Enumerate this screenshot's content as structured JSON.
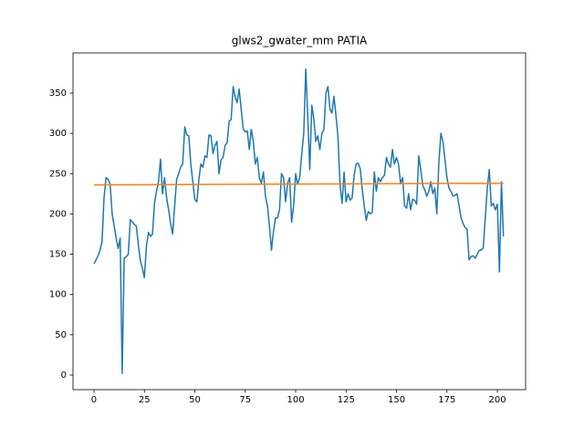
{
  "chart_data": {
    "type": "line",
    "title": "glws2_gwater_mm PATIA",
    "xlim": [
      -10.4,
      214
    ],
    "ylim": [
      -18.1,
      399.8
    ],
    "xticks": [
      0,
      25,
      50,
      75,
      100,
      125,
      150,
      175,
      200
    ],
    "yticks": [
      0,
      50,
      100,
      150,
      200,
      250,
      300,
      350
    ],
    "series": [
      {
        "color": "#1f77b4",
        "x": [
          0,
          1,
          2,
          3,
          4,
          5,
          6,
          7,
          8,
          9,
          10,
          11,
          12,
          13,
          14,
          15,
          16,
          17,
          18,
          19,
          20,
          21,
          22,
          23,
          24,
          25,
          26,
          27,
          28,
          29,
          30,
          31,
          32,
          33,
          34,
          35,
          36,
          37,
          38,
          39,
          40,
          41,
          42,
          43,
          44,
          45,
          46,
          47,
          48,
          49,
          50,
          51,
          52,
          53,
          54,
          55,
          56,
          57,
          58,
          59,
          60,
          61,
          62,
          63,
          64,
          65,
          66,
          67,
          68,
          69,
          70,
          71,
          72,
          73,
          74,
          75,
          76,
          77,
          78,
          79,
          80,
          81,
          82,
          83,
          84,
          85,
          86,
          87,
          88,
          89,
          90,
          91,
          92,
          93,
          94,
          95,
          96,
          97,
          98,
          99,
          100,
          101,
          102,
          103,
          104,
          105,
          106,
          107,
          108,
          109,
          110,
          111,
          112,
          113,
          114,
          115,
          116,
          117,
          118,
          119,
          120,
          121,
          122,
          123,
          124,
          125,
          126,
          127,
          128,
          129,
          130,
          131,
          132,
          133,
          134,
          135,
          136,
          137,
          138,
          139,
          140,
          141,
          142,
          143,
          144,
          145,
          146,
          147,
          148,
          149,
          150,
          151,
          152,
          153,
          154,
          155,
          156,
          157,
          158,
          159,
          160,
          161,
          162,
          163,
          164,
          165,
          166,
          167,
          168,
          169,
          170,
          171,
          172,
          173,
          174,
          175,
          176,
          177,
          178,
          179,
          180,
          181,
          182,
          183,
          184,
          185,
          186,
          187,
          188,
          189,
          190,
          191,
          192,
          193,
          194,
          195,
          196,
          197,
          198,
          199,
          200,
          201,
          202,
          203
        ],
        "values": [
          138,
          143,
          148,
          155,
          165,
          220,
          245,
          243,
          237,
          200,
          185,
          170,
          157,
          170,
          2,
          145,
          147,
          150,
          193,
          190,
          187,
          185,
          162,
          142,
          133,
          121,
          160,
          177,
          172,
          175,
          213,
          228,
          240,
          268,
          225,
          245,
          220,
          205,
          188,
          175,
          210,
          243,
          250,
          258,
          262,
          308,
          298,
          297,
          262,
          240,
          218,
          215,
          242,
          262,
          258,
          272,
          270,
          298,
          297,
          275,
          285,
          290,
          250,
          267,
          270,
          285,
          288,
          315,
          317,
          358,
          345,
          338,
          355,
          330,
          305,
          302,
          303,
          280,
          305,
          290,
          262,
          270,
          245,
          238,
          252,
          222,
          210,
          185,
          155,
          178,
          195,
          195,
          205,
          250,
          245,
          215,
          238,
          245,
          190,
          210,
          250,
          237,
          245,
          275,
          300,
          380,
          320,
          255,
          335,
          318,
          290,
          297,
          280,
          300,
          305,
          350,
          358,
          330,
          325,
          346,
          322,
          295,
          237,
          213,
          252,
          215,
          225,
          217,
          220,
          248,
          262,
          263,
          256,
          230,
          210,
          192,
          203,
          200,
          202,
          252,
          228,
          245,
          240,
          245,
          248,
          270,
          262,
          258,
          280,
          262,
          270,
          262,
          238,
          245,
          210,
          207,
          225,
          205,
          218,
          217,
          212,
          272,
          255,
          235,
          230,
          222,
          228,
          240,
          225,
          232,
          200,
          265,
          300,
          290,
          268,
          245,
          232,
          228,
          222,
          223,
          225,
          210,
          195,
          188,
          183,
          181,
          143,
          147,
          148,
          145,
          150,
          155,
          155,
          158,
          195,
          232,
          255,
          210,
          213,
          205,
          212,
          128,
          240,
          172
        ]
      },
      {
        "color": "#ff7f0e",
        "x": [
          0,
          203
        ],
        "values": [
          236,
          238
        ]
      }
    ]
  }
}
